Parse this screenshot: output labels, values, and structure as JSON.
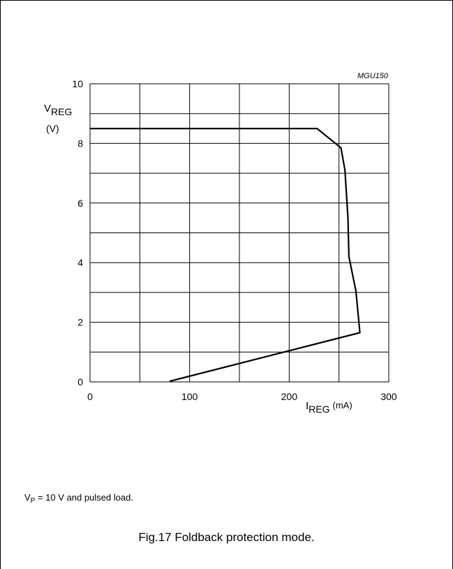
{
  "figure": {
    "code": "MGU150",
    "note": {
      "main": "V",
      "sub": "P",
      "rest": " = 10 V and pulsed load."
    },
    "caption": "Fig.17  Foldback protection mode."
  },
  "chart_data": {
    "type": "line",
    "title": "",
    "xlabel": {
      "main": "I",
      "sub": "REG",
      "unit": "(mA)"
    },
    "ylabel": {
      "main": "V",
      "sub": "REG",
      "unit": "(V)"
    },
    "xlim": [
      0,
      300
    ],
    "ylim": [
      0,
      10
    ],
    "x_ticks": [
      0,
      100,
      200,
      300
    ],
    "y_ticks": [
      0,
      2,
      4,
      6,
      8,
      10
    ],
    "x_grid_step": 50,
    "y_grid_step": 1,
    "grid": true,
    "series": [
      {
        "points": [
          [
            0,
            8.5
          ],
          [
            228,
            8.5
          ],
          [
            252,
            7.85
          ],
          [
            256,
            7.1
          ],
          [
            259,
            5.5
          ],
          [
            260,
            4.2
          ],
          [
            267,
            3.05
          ],
          [
            271,
            1.65
          ],
          [
            80,
            0.02
          ]
        ]
      }
    ],
    "colors": {
      "line": "#000000",
      "grid": "#000000"
    }
  }
}
